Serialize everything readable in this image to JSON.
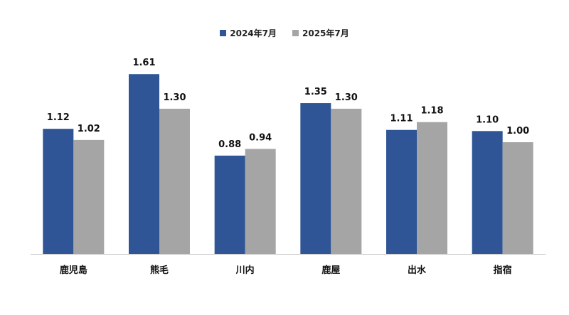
{
  "chart_data": {
    "type": "bar",
    "categories": [
      "鹿児島",
      "熊毛",
      "川内",
      "鹿屋",
      "出水",
      "指宿"
    ],
    "series": [
      {
        "name": "2024年7月",
        "values": [
          1.12,
          1.61,
          0.88,
          1.35,
          1.11,
          1.1
        ],
        "labels": [
          "1.12",
          "1.61",
          "0.88",
          "1.35",
          "1.11",
          "1.10"
        ],
        "color": "#2F5597"
      },
      {
        "name": "2025年7月",
        "values": [
          1.02,
          1.3,
          0.94,
          1.3,
          1.18,
          1.0
        ],
        "labels": [
          "1.02",
          "1.30",
          "0.94",
          "1.30",
          "1.18",
          "1.00"
        ],
        "color": "#A5A5A5"
      }
    ],
    "ylim": [
      0,
      1.8
    ],
    "grid": false,
    "legend": "top-center",
    "data_labels": true
  }
}
